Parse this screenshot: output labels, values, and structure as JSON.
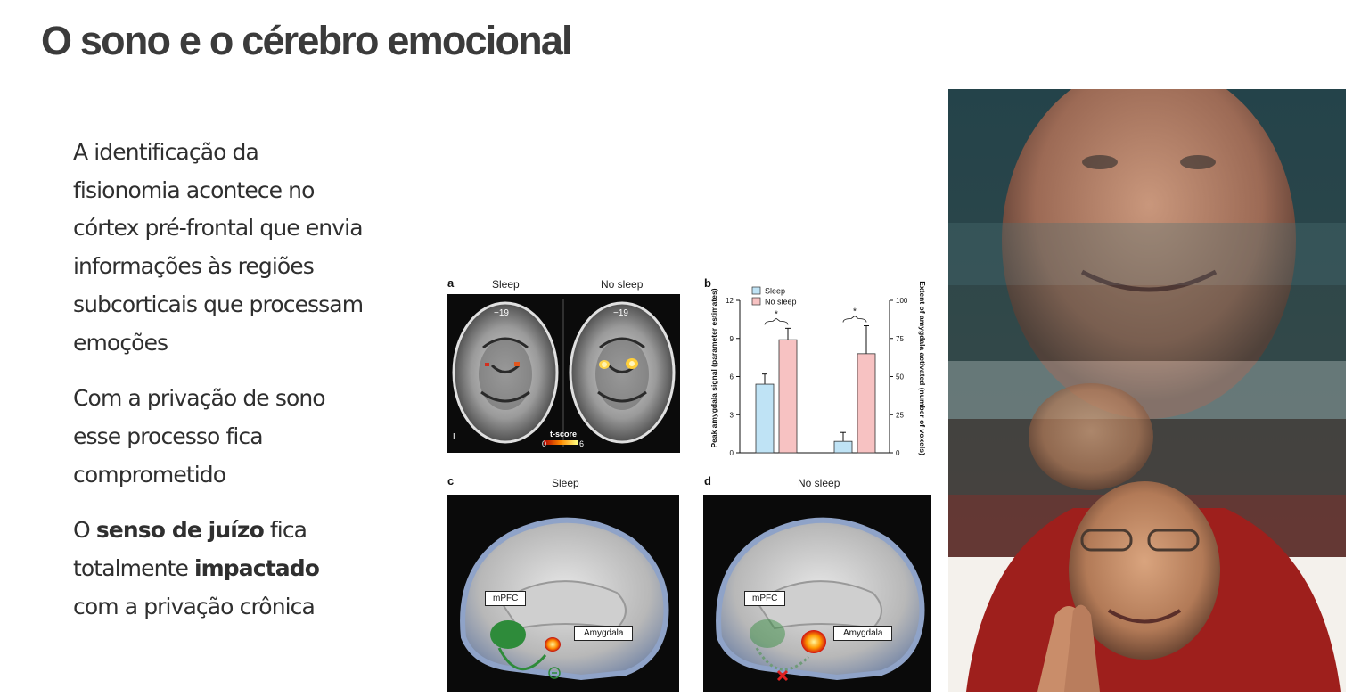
{
  "slide": {
    "title": "O sono e o cérebro emocional",
    "bullets": [
      {
        "text": "A identificação da fisionomia acontece no córtex pré-frontal que envia informações às regiões subcorticais que processam emoções"
      },
      {
        "text": "Com a privação de sono esse processo fica comprometido"
      },
      {
        "pre": "O ",
        "bold1": "senso de juízo",
        "mid": " fica totalmente ",
        "bold2": "impactado",
        "post": " com a privação crônica"
      }
    ]
  },
  "figure": {
    "panel_a": {
      "label": "a",
      "left_title": "Sleep",
      "right_title": "No sleep",
      "slice_left": "−19",
      "slice_right": "−19",
      "side": "L",
      "scale_title": "t-score",
      "scale_min": "0",
      "scale_max": "6"
    },
    "panel_c": {
      "label": "c",
      "title": "Sleep",
      "box_mpfc": "mPFC",
      "box_amygdala": "Amygdala"
    },
    "panel_d": {
      "label": "d",
      "title": "No sleep",
      "box_mpfc": "mPFC",
      "box_amygdala": "Amygdala"
    }
  },
  "chart_data": {
    "type": "bar",
    "label": "b",
    "categories": [
      "",
      ""
    ],
    "series": [
      {
        "name": "Sleep",
        "color": "#bfe3f5",
        "values": [
          5.4,
          0.9
        ],
        "errors": [
          0.8,
          0.7
        ]
      },
      {
        "name": "No sleep",
        "color": "#f7c2c2",
        "values": [
          8.9,
          7.8
        ],
        "errors": [
          0.9,
          2.2
        ]
      }
    ],
    "ylabel_left": "Peak amygdala signal (parameter estimates)",
    "ylabel_right": "Extent of amygdala activated (number of voxels)",
    "ylim_left": [
      0,
      12
    ],
    "yticks_left": [
      "0",
      "3",
      "6",
      "9",
      "12"
    ],
    "ylim_right": [
      0,
      100
    ],
    "yticks_right": [
      "0",
      "25",
      "50",
      "75",
      "100"
    ],
    "significance": [
      "*",
      "*"
    ],
    "legend_position": "top-left"
  },
  "colors": {
    "title": "#3b3b3b",
    "text": "#2f2f2f",
    "sleep_bar": "#bfe3f5",
    "nosleep_bar": "#f7c2c2",
    "mpfc_blob": "#2e8b3a"
  }
}
